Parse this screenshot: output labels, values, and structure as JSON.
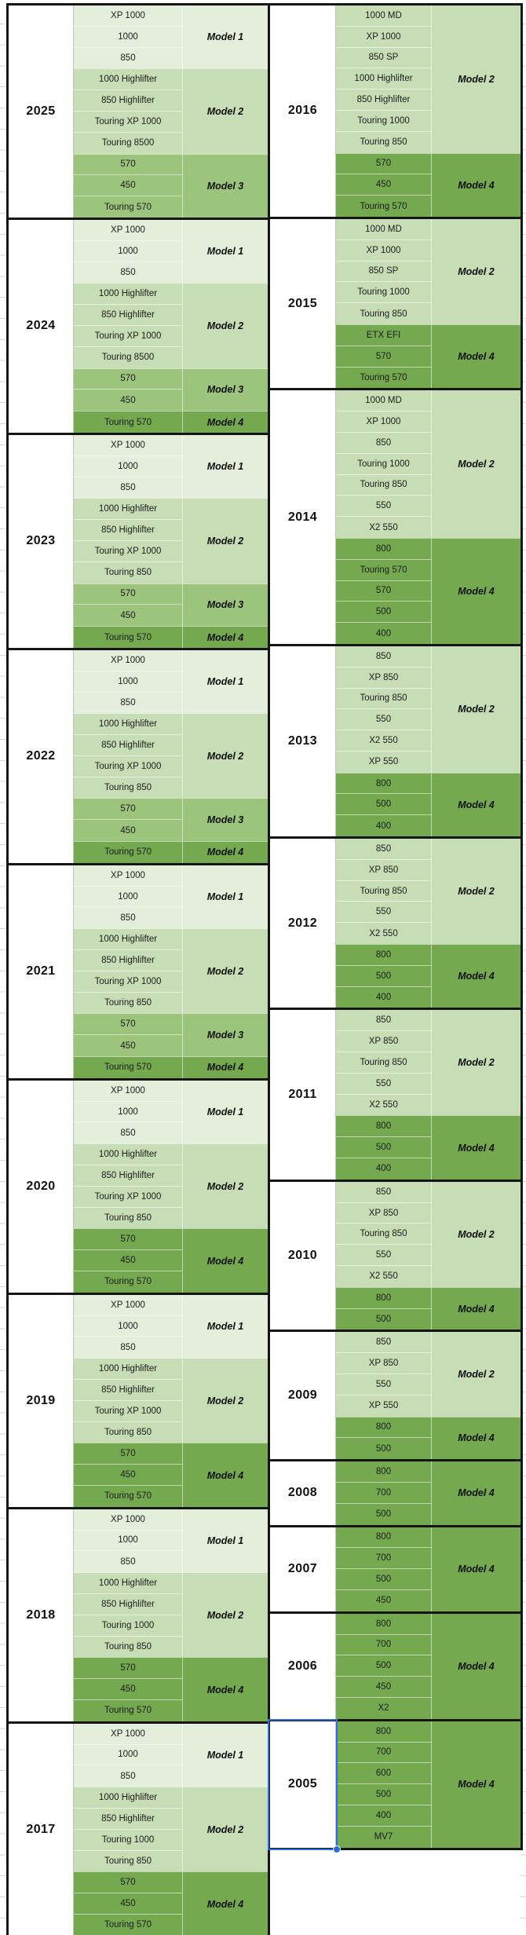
{
  "palette": {
    "tier1": "#e3efda",
    "tier2": "#c7ddb5",
    "tier3": "#9cc47d",
    "tier4": "#74a950",
    "block_border": "#151515",
    "selection_blue": "#2e6be0"
  },
  "selection": {
    "selected_year": "2005"
  },
  "tables": [
    {
      "id": "left",
      "blocks": [
        {
          "year": "2025",
          "groups": [
            {
              "label": "Model 1",
              "tier": 1,
              "models": [
                "XP 1000",
                "1000",
                "850"
              ]
            },
            {
              "label": "Model 2",
              "tier": 2,
              "models": [
                "1000 Highlifter",
                "850 Highlifter",
                "Touring XP 1000",
                "Touring 8500"
              ]
            },
            {
              "label": "Model 3",
              "tier": 3,
              "models": [
                "570",
                "450",
                "Touring 570"
              ]
            }
          ]
        },
        {
          "year": "2024",
          "groups": [
            {
              "label": "Model 1",
              "tier": 1,
              "models": [
                "XP 1000",
                "1000",
                "850"
              ]
            },
            {
              "label": "Model 2",
              "tier": 2,
              "models": [
                "1000 Highlifter",
                "850 Highlifter",
                "Touring XP 1000",
                "Touring 8500"
              ]
            },
            {
              "label": "Model 3",
              "tier": 3,
              "models": [
                "570",
                "450"
              ]
            },
            {
              "label": "Model 4",
              "tier": 4,
              "models": [
                "Touring 570"
              ]
            }
          ]
        },
        {
          "year": "2023",
          "groups": [
            {
              "label": "Model 1",
              "tier": 1,
              "models": [
                "XP 1000",
                "1000",
                "850"
              ]
            },
            {
              "label": "Model 2",
              "tier": 2,
              "models": [
                "1000 Highlifter",
                "850 Highlifter",
                "Touring XP 1000",
                "Touring 850"
              ]
            },
            {
              "label": "Model 3",
              "tier": 3,
              "models": [
                "570",
                "450"
              ]
            },
            {
              "label": "Model 4",
              "tier": 4,
              "models": [
                "Touring 570"
              ]
            }
          ]
        },
        {
          "year": "2022",
          "groups": [
            {
              "label": "Model 1",
              "tier": 1,
              "models": [
                "XP 1000",
                "1000",
                "850"
              ]
            },
            {
              "label": "Model 2",
              "tier": 2,
              "models": [
                "1000 Highlifter",
                "850 Highlifter",
                "Touring XP 1000",
                "Touring 850"
              ]
            },
            {
              "label": "Model 3",
              "tier": 3,
              "models": [
                "570",
                "450"
              ]
            },
            {
              "label": "Model 4",
              "tier": 4,
              "models": [
                "Touring 570"
              ]
            }
          ]
        },
        {
          "year": "2021",
          "groups": [
            {
              "label": "Model 1",
              "tier": 1,
              "models": [
                "XP 1000",
                "1000",
                "850"
              ]
            },
            {
              "label": "Model 2",
              "tier": 2,
              "models": [
                "1000 Highlifter",
                "850 Highlifter",
                "Touring XP 1000",
                "Touring 850"
              ]
            },
            {
              "label": "Model 3",
              "tier": 3,
              "models": [
                "570",
                "450"
              ]
            },
            {
              "label": "Model 4",
              "tier": 4,
              "models": [
                "Touring 570"
              ]
            }
          ]
        },
        {
          "year": "2020",
          "groups": [
            {
              "label": "Model 1",
              "tier": 1,
              "models": [
                "XP 1000",
                "1000",
                "850"
              ]
            },
            {
              "label": "Model 2",
              "tier": 2,
              "models": [
                "1000 Highlifter",
                "850 Highlifter",
                "Touring XP 1000",
                "Touring 850"
              ]
            },
            {
              "label": "Model 4",
              "tier": 4,
              "models": [
                "570",
                "450",
                "Touring 570"
              ]
            }
          ]
        },
        {
          "year": "2019",
          "groups": [
            {
              "label": "Model 1",
              "tier": 1,
              "models": [
                "XP 1000",
                "1000",
                "850"
              ]
            },
            {
              "label": "Model 2",
              "tier": 2,
              "models": [
                "1000 Highlifter",
                "850 Highlifter",
                "Touring XP 1000",
                "Touring 850"
              ]
            },
            {
              "label": "Model 4",
              "tier": 4,
              "models": [
                "570",
                "450",
                "Touring 570"
              ]
            }
          ]
        },
        {
          "year": "2018",
          "groups": [
            {
              "label": "Model 1",
              "tier": 1,
              "models": [
                "XP 1000",
                "1000",
                "850"
              ]
            },
            {
              "label": "Model 2",
              "tier": 2,
              "models": [
                "1000 Highlifter",
                "850 Highlifter",
                "Touring 1000",
                "Touring 850"
              ]
            },
            {
              "label": "Model 4",
              "tier": 4,
              "models": [
                "570",
                "450",
                "Touring 570"
              ]
            }
          ]
        },
        {
          "year": "2017",
          "groups": [
            {
              "label": "Model 1",
              "tier": 1,
              "models": [
                "XP 1000",
                "1000",
                "850"
              ]
            },
            {
              "label": "Model 2",
              "tier": 2,
              "models": [
                "1000 Highlifter",
                "850 Highlifter",
                "Touring 1000",
                "Touring 850"
              ]
            },
            {
              "label": "Model 4",
              "tier": 4,
              "models": [
                "570",
                "450",
                "Touring 570"
              ]
            }
          ]
        }
      ]
    },
    {
      "id": "right",
      "blocks": [
        {
          "year": "2016",
          "groups": [
            {
              "label": "Model 2",
              "tier": 2,
              "models": [
                "1000 MD",
                "XP 1000",
                "850 SP",
                "1000 Highlifter",
                "850 Highlifter",
                "Touring 1000",
                "Touring 850"
              ]
            },
            {
              "label": "Model 4",
              "tier": 4,
              "models": [
                "570",
                "450",
                "Touring 570"
              ]
            }
          ]
        },
        {
          "year": "2015",
          "groups": [
            {
              "label": "Model 2",
              "tier": 2,
              "models": [
                "1000 MD",
                "XP 1000",
                "850 SP",
                "Touring 1000",
                "Touring 850"
              ]
            },
            {
              "label": "Model 4",
              "tier": 4,
              "models": [
                "ETX EFI",
                "570",
                "Touring 570"
              ]
            }
          ]
        },
        {
          "year": "2014",
          "groups": [
            {
              "label": "Model 2",
              "tier": 2,
              "models": [
                "1000 MD",
                "XP 1000",
                "850",
                "Touring 1000",
                "Touring 850",
                "550",
                "X2 550"
              ]
            },
            {
              "label": "Model 4",
              "tier": 4,
              "models": [
                "800",
                "Touring 570",
                "570",
                "500",
                "400"
              ]
            }
          ]
        },
        {
          "year": "2013",
          "groups": [
            {
              "label": "Model 2",
              "tier": 2,
              "models": [
                "850",
                "XP 850",
                "Touring 850",
                "550",
                "X2 550",
                "XP 550"
              ]
            },
            {
              "label": "Model 4",
              "tier": 4,
              "models": [
                "800",
                "500",
                "400"
              ]
            }
          ]
        },
        {
          "year": "2012",
          "groups": [
            {
              "label": "Model 2",
              "tier": 2,
              "models": [
                "850",
                "XP 850",
                "Touring 850",
                "550",
                "X2 550"
              ]
            },
            {
              "label": "Model 4",
              "tier": 4,
              "models": [
                "800",
                "500",
                "400"
              ]
            }
          ]
        },
        {
          "year": "2011",
          "groups": [
            {
              "label": "Model 2",
              "tier": 2,
              "models": [
                "850",
                "XP 850",
                "Touring 850",
                "550",
                "X2 550"
              ]
            },
            {
              "label": "Model 4",
              "tier": 4,
              "models": [
                "800",
                "500",
                "400"
              ]
            }
          ]
        },
        {
          "year": "2010",
          "groups": [
            {
              "label": "Model 2",
              "tier": 2,
              "models": [
                "850",
                "XP 850",
                "Touring 850",
                "550",
                "X2 550"
              ]
            },
            {
              "label": "Model 4",
              "tier": 4,
              "models": [
                "800",
                "500"
              ]
            }
          ]
        },
        {
          "year": "2009",
          "groups": [
            {
              "label": "Model 2",
              "tier": 2,
              "models": [
                "850",
                "XP 850",
                "550",
                "XP 550"
              ]
            },
            {
              "label": "Model 4",
              "tier": 4,
              "models": [
                "800",
                "500"
              ]
            }
          ]
        },
        {
          "year": "2008",
          "groups": [
            {
              "label": "Model 4",
              "tier": 4,
              "models": [
                "800",
                "700",
                "500"
              ]
            }
          ]
        },
        {
          "year": "2007",
          "groups": [
            {
              "label": "Model 4",
              "tier": 4,
              "models": [
                "800",
                "700",
                "500",
                "450"
              ]
            }
          ]
        },
        {
          "year": "2006",
          "groups": [
            {
              "label": "Model 4",
              "tier": 4,
              "models": [
                "800",
                "700",
                "500",
                "450",
                "X2"
              ]
            }
          ]
        },
        {
          "year": "2005",
          "groups": [
            {
              "label": "Model 4",
              "tier": 4,
              "models": [
                "800",
                "700",
                "600",
                "500",
                "400",
                "MV7"
              ]
            }
          ]
        }
      ]
    }
  ]
}
